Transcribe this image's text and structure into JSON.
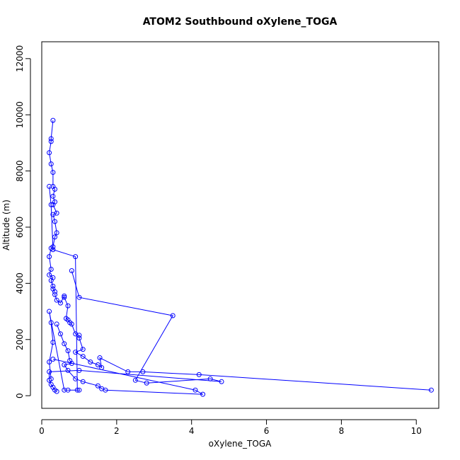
{
  "chart_data": {
    "type": "line",
    "title": "ATOM2 Southbound oXylene_TOGA",
    "xlabel": "oXylene_TOGA",
    "ylabel": "Altitude (m)",
    "xlim": [
      0,
      10.6
    ],
    "ylim": [
      -450,
      12600
    ],
    "x_ticks": [
      0,
      2,
      4,
      6,
      8,
      10
    ],
    "x_tick_labels": [
      "0",
      "2",
      "4",
      "6",
      "8",
      "10"
    ],
    "y_ticks": [
      0,
      2000,
      4000,
      6000,
      8000,
      10000,
      12000
    ],
    "y_tick_labels": [
      "0",
      "2000",
      "4000",
      "6000",
      "8000",
      "10000",
      "12000"
    ],
    "grid": false,
    "legend": "none",
    "color": "#0000ff",
    "marker": "open-circle",
    "series": [
      {
        "x": [
          0.3,
          0.25,
          0.25,
          0.2,
          0.25,
          0.3,
          0.3,
          0.35,
          0.3,
          0.35,
          0.3,
          0.4,
          0.3,
          0.35,
          0.4,
          0.35,
          0.3,
          0.25,
          0.2,
          0.25,
          0.2,
          0.3,
          0.25,
          0.3,
          0.3,
          0.35
        ],
        "y": [
          9800,
          9150,
          9050,
          8650,
          8250,
          7950,
          7450,
          7350,
          7100,
          6900,
          6800,
          6500,
          6450,
          6200,
          5800,
          5650,
          5300,
          5250,
          4950,
          4500,
          4300,
          4200,
          4100,
          3900,
          3800,
          3700
        ]
      },
      {
        "x": [
          0.35,
          0.4,
          0.5,
          0.6,
          0.6,
          0.7,
          0.65,
          0.7,
          0.75,
          0.8,
          0.9,
          1.0,
          1.0,
          1.1,
          0.9,
          1.1,
          1.3,
          1.5,
          1.6,
          1.55,
          2.3,
          2.7,
          4.2,
          10.4
        ],
        "y": [
          3600,
          3400,
          3300,
          3550,
          3500,
          3200,
          2750,
          2700,
          2600,
          2550,
          2200,
          2150,
          2050,
          1650,
          1550,
          1400,
          1200,
          1100,
          1000,
          1350,
          850,
          850,
          750,
          200
        ]
      },
      {
        "x": [
          0.8,
          1.0,
          3.5,
          2.5,
          2.8,
          4.5,
          4.8,
          1.0,
          0.2,
          0.2,
          0.25,
          0.3,
          0.35,
          0.4
        ],
        "y": [
          4450,
          3500,
          2850,
          550,
          450,
          600,
          500,
          900,
          850,
          550,
          400,
          300,
          200,
          150
        ]
      },
      {
        "x": [
          0.4,
          0.5,
          0.6,
          0.7,
          0.75,
          0.8,
          0.6,
          0.7,
          0.9,
          1.1,
          1.5,
          1.6,
          1.7,
          4.3,
          4.1,
          0.3
        ],
        "y": [
          2550,
          2200,
          1850,
          1600,
          1250,
          1150,
          1100,
          900,
          600,
          500,
          350,
          250,
          200,
          50,
          200,
          1300
        ]
      },
      {
        "x": [
          0.2,
          0.25,
          0.3,
          0.9,
          0.95,
          1.0,
          0.7,
          0.6,
          0.2,
          0.25,
          0.3,
          0.2,
          0.25
        ],
        "y": [
          7450,
          6800,
          5200,
          4950,
          200,
          200,
          200,
          200,
          3000,
          2600,
          1900,
          1200,
          600
        ]
      }
    ]
  }
}
